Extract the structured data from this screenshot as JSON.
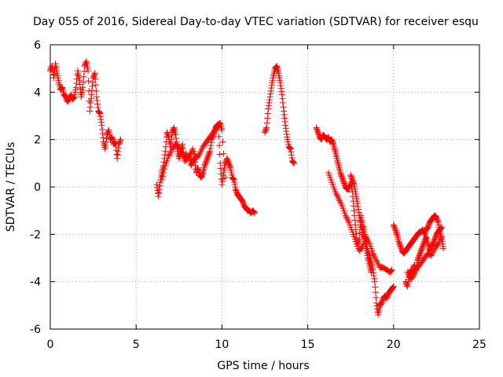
{
  "chart_data": {
    "type": "scatter",
    "title": "Day 055 of 2016, Sidereal Day-to-day VTEC variation (SDTVAR) for receiver esqu",
    "xlabel": "GPS time / hours",
    "ylabel": "SDTVAR / TECUs",
    "xlim": [
      0,
      25
    ],
    "ylim": [
      -6,
      6
    ],
    "xticks": [
      0,
      5,
      10,
      15,
      20,
      25
    ],
    "yticks": [
      -6,
      -4,
      -2,
      0,
      2,
      4,
      6
    ],
    "grid": true,
    "marker": "+",
    "color": "#ff0000",
    "series": [
      {
        "segments": [
          [
            [
              0.0,
              4.9
            ],
            [
              0.1,
              5.1
            ],
            [
              0.2,
              4.6
            ],
            [
              0.3,
              5.2
            ],
            [
              0.4,
              4.8
            ],
            [
              0.5,
              4.4
            ],
            [
              0.6,
              4.1
            ],
            [
              0.7,
              4.2
            ],
            [
              0.8,
              3.9
            ],
            [
              0.9,
              3.8
            ],
            [
              1.0,
              3.6
            ],
            [
              1.1,
              3.7
            ],
            [
              1.2,
              3.9
            ],
            [
              1.3,
              3.7
            ],
            [
              1.4,
              3.8
            ],
            [
              1.5,
              4.2
            ],
            [
              1.6,
              4.9
            ],
            [
              1.7,
              4.5
            ],
            [
              1.8,
              3.8
            ],
            [
              1.9,
              4.2
            ],
            [
              2.0,
              5.1
            ],
            [
              2.1,
              5.3
            ],
            [
              2.2,
              4.9
            ],
            [
              2.3,
              3.2
            ],
            [
              2.4,
              3.9
            ],
            [
              2.5,
              4.6
            ],
            [
              2.6,
              4.8
            ],
            [
              2.7,
              3.8
            ],
            [
              2.8,
              3.2
            ],
            [
              2.9,
              3.1
            ],
            [
              3.0,
              2.6
            ],
            [
              3.1,
              1.9
            ],
            [
              3.2,
              1.6
            ],
            [
              3.3,
              2.2
            ],
            [
              3.4,
              2.4
            ],
            [
              3.5,
              2.0
            ],
            [
              3.6,
              2.1
            ],
            [
              3.7,
              1.8
            ],
            [
              3.8,
              1.9
            ],
            [
              3.9,
              1.2
            ],
            [
              4.0,
              1.8
            ],
            [
              4.1,
              2.0
            ]
          ],
          [
            [
              6.2,
              0.1
            ],
            [
              6.3,
              -0.4
            ],
            [
              6.4,
              0.2
            ],
            [
              6.5,
              0.6
            ],
            [
              6.6,
              0.9
            ],
            [
              6.7,
              1.5
            ],
            [
              6.8,
              2.3
            ],
            [
              6.9,
              2.1
            ],
            [
              7.0,
              1.7
            ],
            [
              7.1,
              2.3
            ],
            [
              7.2,
              2.5
            ],
            [
              7.3,
              2.2
            ],
            [
              7.4,
              1.6
            ],
            [
              7.5,
              1.2
            ],
            [
              7.6,
              1.5
            ],
            [
              7.7,
              1.8
            ],
            [
              7.8,
              1.1
            ],
            [
              7.9,
              1.4
            ],
            [
              8.0,
              1.2
            ],
            [
              8.1,
              1.3
            ],
            [
              8.2,
              0.9
            ],
            [
              8.3,
              1.1
            ],
            [
              8.4,
              1.2
            ],
            [
              8.5,
              0.6
            ],
            [
              8.6,
              0.8
            ],
            [
              8.7,
              0.5
            ],
            [
              8.8,
              0.4
            ],
            [
              8.9,
              0.6
            ],
            [
              9.0,
              0.9
            ],
            [
              9.1,
              1.1
            ],
            [
              9.2,
              1.3
            ],
            [
              9.3,
              1.5
            ],
            [
              9.4,
              2.0
            ],
            [
              9.5,
              2.2
            ],
            [
              9.6,
              2.4
            ],
            [
              9.7,
              2.6
            ],
            [
              9.8,
              2.5
            ],
            [
              9.9,
              1.0
            ],
            [
              10.0,
              0.1
            ],
            [
              10.1,
              0.6
            ],
            [
              10.2,
              1.0
            ],
            [
              10.3,
              1.2
            ],
            [
              10.4,
              1.0
            ],
            [
              10.5,
              0.8
            ],
            [
              10.6,
              0.4
            ],
            [
              10.7,
              0.3
            ],
            [
              10.8,
              -0.1
            ],
            [
              10.9,
              -0.3
            ],
            [
              11.0,
              -0.4
            ],
            [
              11.1,
              -0.5
            ],
            [
              11.2,
              -0.6
            ],
            [
              11.3,
              -0.8
            ],
            [
              11.4,
              -0.9
            ],
            [
              11.5,
              -1.0
            ],
            [
              11.6,
              -1.0
            ],
            [
              11.7,
              -1.1
            ],
            [
              11.8,
              -1.0
            ],
            [
              11.9,
              -1.1
            ]
          ],
          [
            [
              6.5,
              0.3
            ],
            [
              6.7,
              0.9
            ],
            [
              6.9,
              1.3
            ],
            [
              7.1,
              1.6
            ],
            [
              7.3,
              1.8
            ],
            [
              7.5,
              1.7
            ],
            [
              7.7,
              1.4
            ],
            [
              7.9,
              1.1
            ],
            [
              8.1,
              1.3
            ],
            [
              8.3,
              1.6
            ],
            [
              8.5,
              1.2
            ],
            [
              8.7,
              1.4
            ],
            [
              8.9,
              1.7
            ],
            [
              9.1,
              1.9
            ],
            [
              9.3,
              2.1
            ],
            [
              9.5,
              2.3
            ],
            [
              9.7,
              2.6
            ],
            [
              9.9,
              2.7
            ],
            [
              10.0,
              2.4
            ],
            [
              10.2,
              0.4
            ]
          ],
          [
            [
              12.5,
              2.3
            ],
            [
              12.6,
              2.5
            ],
            [
              12.7,
              3.3
            ],
            [
              12.8,
              3.8
            ],
            [
              12.9,
              4.3
            ],
            [
              13.0,
              4.7
            ],
            [
              13.1,
              5.0
            ],
            [
              13.2,
              5.1
            ],
            [
              13.3,
              4.8
            ],
            [
              13.4,
              4.4
            ],
            [
              13.5,
              3.9
            ],
            [
              13.6,
              3.2
            ],
            [
              13.7,
              2.6
            ],
            [
              13.8,
              2.1
            ],
            [
              13.9,
              1.7
            ],
            [
              14.0,
              1.6
            ],
            [
              14.1,
              1.1
            ],
            [
              14.2,
              1.0
            ]
          ],
          [
            [
              15.5,
              2.5
            ],
            [
              15.6,
              2.3
            ],
            [
              15.7,
              2.1
            ],
            [
              15.8,
              2.0
            ],
            [
              15.9,
              2.2
            ],
            [
              16.0,
              2.1
            ],
            [
              16.1,
              2.0
            ],
            [
              16.2,
              2.1
            ],
            [
              16.3,
              1.9
            ],
            [
              16.4,
              2.0
            ],
            [
              16.5,
              1.8
            ],
            [
              16.6,
              1.5
            ],
            [
              16.7,
              1.2
            ],
            [
              16.8,
              0.9
            ],
            [
              16.9,
              0.6
            ],
            [
              17.0,
              0.4
            ],
            [
              17.1,
              0.2
            ],
            [
              17.2,
              0.0
            ],
            [
              17.3,
              -0.1
            ],
            [
              17.4,
              -0.1
            ],
            [
              17.5,
              0.2
            ],
            [
              17.6,
              -0.2
            ],
            [
              17.7,
              -1.0
            ],
            [
              17.8,
              -1.8
            ],
            [
              17.9,
              -2.5
            ],
            [
              18.0,
              -2.2
            ],
            [
              18.1,
              -1.2
            ],
            [
              18.2,
              -1.6
            ],
            [
              18.3,
              -1.9
            ],
            [
              18.4,
              -2.3
            ],
            [
              18.5,
              -2.7
            ],
            [
              18.6,
              -2.9
            ],
            [
              18.7,
              -3.2
            ],
            [
              18.8,
              -3.5
            ],
            [
              18.9,
              -4.0
            ],
            [
              19.0,
              -4.9
            ],
            [
              19.1,
              -5.4
            ],
            [
              19.2,
              -5.0
            ],
            [
              19.3,
              -4.9
            ],
            [
              19.4,
              -4.7
            ],
            [
              19.5,
              -4.6
            ],
            [
              19.6,
              -4.7
            ],
            [
              19.7,
              -4.5
            ],
            [
              19.8,
              -4.4
            ],
            [
              19.9,
              -4.3
            ],
            [
              20.0,
              -4.2
            ]
          ],
          [
            [
              16.2,
              0.6
            ],
            [
              16.4,
              0.2
            ],
            [
              16.6,
              -0.2
            ],
            [
              16.8,
              -0.5
            ],
            [
              17.0,
              -0.8
            ],
            [
              17.2,
              -1.2
            ],
            [
              17.4,
              -1.5
            ],
            [
              17.6,
              -1.9
            ],
            [
              17.8,
              -2.3
            ],
            [
              18.0,
              -2.7
            ],
            [
              18.2,
              -2.5
            ],
            [
              18.4,
              -2.1
            ],
            [
              18.6,
              -2.4
            ],
            [
              18.8,
              -2.8
            ],
            [
              19.0,
              -3.1
            ],
            [
              19.2,
              -3.4
            ],
            [
              19.4,
              -3.4
            ],
            [
              19.6,
              -3.5
            ],
            [
              19.8,
              -3.6
            ],
            [
              19.9,
              -3.5
            ]
          ],
          [
            [
              17.5,
              0.5
            ],
            [
              17.6,
              0.3
            ],
            [
              17.7,
              0.1
            ],
            [
              17.8,
              -0.3
            ],
            [
              17.9,
              -0.7
            ],
            [
              18.0,
              -1.2
            ],
            [
              18.1,
              -1.6
            ],
            [
              18.2,
              -2.0
            ],
            [
              18.3,
              -2.2
            ],
            [
              18.4,
              -2.6
            ],
            [
              18.5,
              -3.0
            ],
            [
              18.6,
              -3.3
            ],
            [
              18.7,
              -3.6
            ]
          ],
          [
            [
              20.0,
              -1.6
            ],
            [
              20.1,
              -1.8
            ],
            [
              20.2,
              -2.0
            ],
            [
              20.3,
              -2.3
            ],
            [
              20.4,
              -2.5
            ],
            [
              20.5,
              -2.7
            ],
            [
              20.6,
              -2.8
            ],
            [
              20.7,
              -2.7
            ],
            [
              20.8,
              -2.6
            ],
            [
              20.9,
              -2.5
            ],
            [
              21.0,
              -2.4
            ],
            [
              21.1,
              -2.3
            ],
            [
              21.2,
              -2.2
            ],
            [
              21.3,
              -2.1
            ],
            [
              21.4,
              -2.0
            ],
            [
              21.5,
              -1.9
            ],
            [
              21.6,
              -1.9
            ],
            [
              21.7,
              -1.8
            ],
            [
              21.8,
              -2.0
            ],
            [
              21.9,
              -1.8
            ],
            [
              22.0,
              -1.7
            ],
            [
              22.1,
              -1.5
            ],
            [
              22.2,
              -1.4
            ],
            [
              22.3,
              -1.3
            ],
            [
              22.4,
              -1.2
            ],
            [
              22.5,
              -1.3
            ],
            [
              22.6,
              -1.5
            ],
            [
              22.7,
              -1.9
            ],
            [
              22.8,
              -2.2
            ],
            [
              22.9,
              -2.6
            ]
          ],
          [
            [
              20.7,
              -4.0
            ],
            [
              20.8,
              -4.2
            ],
            [
              20.9,
              -3.8
            ],
            [
              21.0,
              -3.5
            ],
            [
              21.1,
              -3.6
            ],
            [
              21.2,
              -3.3
            ],
            [
              21.3,
              -3.5
            ],
            [
              21.4,
              -3.1
            ],
            [
              21.5,
              -2.9
            ],
            [
              21.6,
              -2.7
            ],
            [
              21.7,
              -2.5
            ],
            [
              21.8,
              -2.3
            ],
            [
              21.9,
              -2.1
            ],
            [
              22.0,
              -2.4
            ],
            [
              22.1,
              -2.7
            ],
            [
              22.2,
              -2.5
            ],
            [
              22.3,
              -2.4
            ],
            [
              22.4,
              -2.2
            ],
            [
              22.5,
              -2.0
            ],
            [
              22.6,
              -1.9
            ],
            [
              22.7,
              -1.8
            ],
            [
              22.8,
              -1.7
            ]
          ],
          [
            [
              20.8,
              -3.6
            ],
            [
              21.0,
              -3.9
            ],
            [
              21.2,
              -3.7
            ],
            [
              21.4,
              -3.4
            ],
            [
              21.6,
              -3.2
            ],
            [
              21.8,
              -3.0
            ],
            [
              22.0,
              -2.8
            ],
            [
              22.2,
              -2.9
            ],
            [
              22.4,
              -2.6
            ],
            [
              22.6,
              -2.4
            ],
            [
              22.8,
              -2.1
            ]
          ]
        ]
      }
    ]
  }
}
